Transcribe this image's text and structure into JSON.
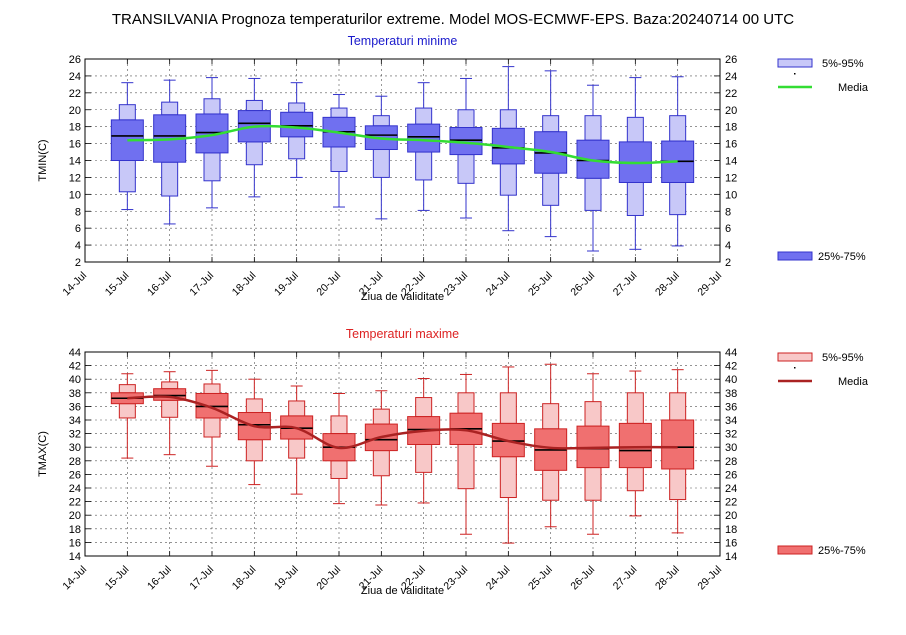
{
  "title": "TRANSILVANIA  Prognoza temperaturilor extreme.  Model MOS-ECMWF-EPS. Baza:20240714 00 UTC",
  "chart_data": [
    {
      "type": "box",
      "title": "Temperaturi minime",
      "ylabel": "TMIN(C)",
      "xlabel": "Ziua de validitate",
      "ylim": [
        2,
        26
      ],
      "yticks": [
        2,
        4,
        6,
        8,
        10,
        12,
        14,
        16,
        18,
        20,
        22,
        24,
        26
      ],
      "grid": true,
      "categories": [
        "14-Jul",
        "15-Jul",
        "16-Jul",
        "17-Jul",
        "18-Jul",
        "19-Jul",
        "20-Jul",
        "21-Jul",
        "22-Jul",
        "23-Jul",
        "24-Jul",
        "25-Jul",
        "26-Jul",
        "27-Jul",
        "28-Jul",
        "29-Jul"
      ],
      "colors": {
        "box": "#7070f0",
        "box_light": "#c8c8f8",
        "line": "#3333cc",
        "media": "#33dd33",
        "title": "#1a1acc"
      },
      "legend": {
        "range_label": "5%-95%",
        "media_label": "Media",
        "iqr_label": "25%-75%"
      },
      "boxes": [
        {
          "day": "15-Jul",
          "min": 8.2,
          "p5": 10.3,
          "p25": 14,
          "median": 16.9,
          "p75": 18.8,
          "p95": 20.6,
          "max": 23.2,
          "media": 16.4
        },
        {
          "day": "16-Jul",
          "min": 6.5,
          "p5": 9.8,
          "p25": 13.8,
          "median": 16.9,
          "p75": 19.4,
          "p95": 20.9,
          "max": 23.5,
          "media": 16.5
        },
        {
          "day": "17-Jul",
          "min": 8.4,
          "p5": 11.6,
          "p25": 14.9,
          "median": 17.3,
          "p75": 19.5,
          "p95": 21.3,
          "max": 23.8,
          "media": 17.0
        },
        {
          "day": "18-Jul",
          "min": 9.7,
          "p5": 13.5,
          "p25": 16.2,
          "median": 18.4,
          "p75": 19.9,
          "p95": 21.1,
          "max": 23.7,
          "media": 18.0
        },
        {
          "day": "19-Jul",
          "min": 12.0,
          "p5": 14.2,
          "p25": 16.8,
          "median": 18.1,
          "p75": 19.7,
          "p95": 20.8,
          "max": 23.2,
          "media": 17.9
        },
        {
          "day": "20-Jul",
          "min": 8.5,
          "p5": 12.7,
          "p25": 15.6,
          "median": 17.4,
          "p75": 19.1,
          "p95": 20.2,
          "max": 21.8,
          "media": 17.3
        },
        {
          "day": "21-Jul",
          "min": 7.1,
          "p5": 12.0,
          "p25": 15.3,
          "median": 17.0,
          "p75": 18.1,
          "p95": 19.3,
          "max": 21.6,
          "media": 16.6
        },
        {
          "day": "22-Jul",
          "min": 8.1,
          "p5": 11.7,
          "p25": 15.0,
          "median": 16.8,
          "p75": 18.3,
          "p95": 20.2,
          "max": 23.2,
          "media": 16.4
        },
        {
          "day": "23-Jul",
          "min": 7.2,
          "p5": 11.3,
          "p25": 14.7,
          "median": 16.4,
          "p75": 17.9,
          "p95": 20.0,
          "max": 23.7,
          "media": 16.1
        },
        {
          "day": "24-Jul",
          "min": 5.7,
          "p5": 9.9,
          "p25": 13.6,
          "median": 15.5,
          "p75": 17.8,
          "p95": 20.0,
          "max": 25.1,
          "media": 15.6
        },
        {
          "day": "25-Jul",
          "min": 5.0,
          "p5": 8.7,
          "p25": 12.5,
          "median": 14.9,
          "p75": 17.4,
          "p95": 19.3,
          "max": 24.6,
          "media": 15.0
        },
        {
          "day": "26-Jul",
          "min": 3.3,
          "p5": 8.1,
          "p25": 11.9,
          "median": 14.0,
          "p75": 16.4,
          "p95": 19.3,
          "max": 22.9,
          "media": 14.0
        },
        {
          "day": "27-Jul",
          "min": 3.5,
          "p5": 7.5,
          "p25": 11.4,
          "median": 13.7,
          "p75": 16.2,
          "p95": 19.1,
          "max": 23.8,
          "media": 13.7
        },
        {
          "day": "28-Jul",
          "min": 3.9,
          "p5": 7.6,
          "p25": 11.4,
          "median": 13.9,
          "p75": 16.3,
          "p95": 19.3,
          "max": 23.9,
          "media": 13.9
        }
      ]
    },
    {
      "type": "box",
      "title": "Temperaturi maxime",
      "ylabel": "TMAX(C)",
      "xlabel": "Ziua de validitate",
      "ylim": [
        14,
        44
      ],
      "yticks": [
        14,
        16,
        18,
        20,
        22,
        24,
        26,
        28,
        30,
        32,
        34,
        36,
        38,
        40,
        42,
        44
      ],
      "grid": true,
      "categories": [
        "14-Jul",
        "15-Jul",
        "16-Jul",
        "17-Jul",
        "18-Jul",
        "19-Jul",
        "20-Jul",
        "21-Jul",
        "22-Jul",
        "23-Jul",
        "24-Jul",
        "25-Jul",
        "26-Jul",
        "27-Jul",
        "28-Jul",
        "29-Jul"
      ],
      "colors": {
        "box": "#f07070",
        "box_light": "#f8c8c8",
        "line": "#cc2222",
        "media": "#aa2222",
        "title": "#dd2222"
      },
      "legend": {
        "range_label": "5%-95%",
        "media_label": "Media",
        "iqr_label": "25%-75%"
      },
      "boxes": [
        {
          "day": "15-Jul",
          "min": 28.4,
          "p5": 34.3,
          "p25": 36.4,
          "median": 37.2,
          "p75": 38.0,
          "p95": 39.2,
          "max": 40.8,
          "media": 37.2
        },
        {
          "day": "16-Jul",
          "min": 28.9,
          "p5": 34.4,
          "p25": 36.9,
          "median": 37.6,
          "p75": 38.6,
          "p95": 39.6,
          "max": 41.1,
          "media": 37.4
        },
        {
          "day": "17-Jul",
          "min": 27.2,
          "p5": 31.5,
          "p25": 34.3,
          "median": 36.0,
          "p75": 37.9,
          "p95": 39.3,
          "max": 41.3,
          "media": 35.8
        },
        {
          "day": "18-Jul",
          "min": 24.5,
          "p5": 28.0,
          "p25": 31.1,
          "median": 33.3,
          "p75": 35.1,
          "p95": 37.1,
          "max": 40.0,
          "media": 33.1
        },
        {
          "day": "19-Jul",
          "min": 23.1,
          "p5": 28.4,
          "p25": 31.2,
          "median": 32.8,
          "p75": 34.6,
          "p95": 36.8,
          "max": 39.0,
          "media": 32.8
        },
        {
          "day": "20-Jul",
          "min": 21.7,
          "p5": 25.4,
          "p25": 28.0,
          "median": 30.0,
          "p75": 32.0,
          "p95": 34.6,
          "max": 37.9,
          "media": 29.9
        },
        {
          "day": "21-Jul",
          "min": 21.5,
          "p5": 25.8,
          "p25": 29.5,
          "median": 31.1,
          "p75": 33.4,
          "p95": 35.6,
          "max": 38.3,
          "media": 31.5
        },
        {
          "day": "22-Jul",
          "min": 21.8,
          "p5": 26.3,
          "p25": 30.4,
          "median": 32.6,
          "p75": 34.5,
          "p95": 37.3,
          "max": 40.1,
          "media": 32.4
        },
        {
          "day": "23-Jul",
          "min": 17.2,
          "p5": 23.9,
          "p25": 30.4,
          "median": 32.7,
          "p75": 35.0,
          "p95": 38.0,
          "max": 40.7,
          "media": 32.5
        },
        {
          "day": "24-Jul",
          "min": 15.9,
          "p5": 22.6,
          "p25": 28.6,
          "median": 30.9,
          "p75": 33.5,
          "p95": 38.0,
          "max": 41.8,
          "media": 30.9
        },
        {
          "day": "25-Jul",
          "min": 18.3,
          "p5": 22.2,
          "p25": 26.6,
          "median": 29.6,
          "p75": 32.7,
          "p95": 36.4,
          "max": 42.2,
          "media": 29.9
        },
        {
          "day": "26-Jul",
          "min": 17.2,
          "p5": 22.2,
          "p25": 27.0,
          "median": 29.8,
          "p75": 33.1,
          "p95": 36.7,
          "max": 40.8,
          "media": 29.9
        },
        {
          "day": "27-Jul",
          "min": 19.9,
          "p5": 23.6,
          "p25": 27.0,
          "median": 29.5,
          "p75": 33.5,
          "p95": 38.0,
          "max": 41.2,
          "media": 30.0
        },
        {
          "day": "28-Jul",
          "min": 17.4,
          "p5": 22.3,
          "p25": 26.8,
          "median": 30.0,
          "p75": 34.0,
          "p95": 38.0,
          "max": 41.4,
          "media": 30.0
        }
      ]
    }
  ]
}
